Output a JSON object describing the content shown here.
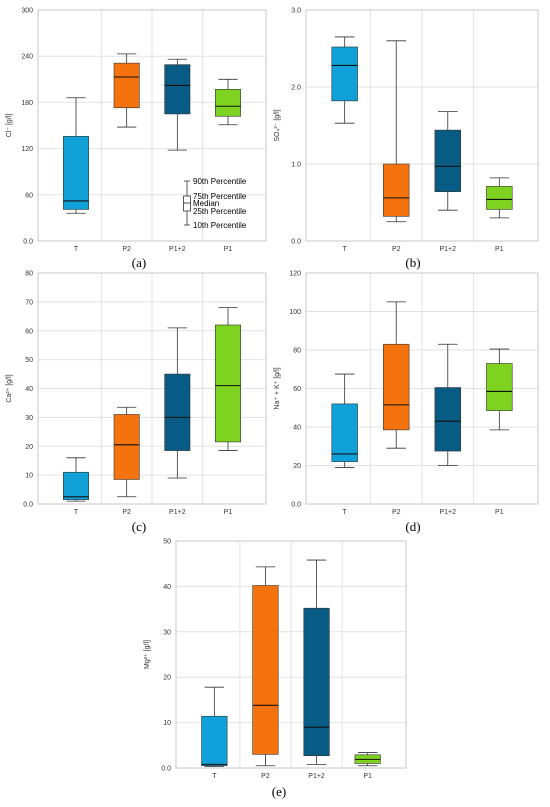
{
  "chart_data": [
    {
      "type": "box",
      "panel_label": "(a)",
      "title": "",
      "xlabel": "",
      "ylabel": "Cl⁻ [g/l]",
      "ylim": [
        0,
        300
      ],
      "yticks": [
        0,
        60,
        120,
        180,
        240,
        300
      ],
      "ytick_labels": [
        "0.0",
        "60",
        "120",
        "180",
        "240",
        "300"
      ],
      "grid": true,
      "categories": [
        "T",
        "P2",
        "P1+2",
        "P1"
      ],
      "colors": [
        "#0fa1d8",
        "#f5730f",
        "#085b84",
        "#7ed320"
      ],
      "boxes": [
        {
          "p10": 36,
          "q1": 41,
          "median": 52,
          "q3": 136,
          "p90": 186
        },
        {
          "p10": 148,
          "q1": 173,
          "median": 213,
          "q3": 231,
          "p90": 243
        },
        {
          "p10": 118,
          "q1": 165,
          "median": 202,
          "q3": 229,
          "p90": 236
        },
        {
          "p10": 151,
          "q1": 162,
          "median": 175,
          "q3": 197,
          "p90": 210
        }
      ],
      "legend": {
        "position": "bottom-right",
        "items": [
          "90th Percentile",
          "75th Percentile",
          "Median",
          "25th Percentile",
          "10th Percentile"
        ]
      }
    },
    {
      "type": "box",
      "panel_label": "(b)",
      "title": "",
      "xlabel": "",
      "ylabel": "SO₄²⁻ [g/l]",
      "ylim": [
        0,
        3
      ],
      "yticks": [
        0,
        1,
        2,
        3
      ],
      "ytick_labels": [
        "0.0",
        "1.0",
        "2.0",
        "3.0"
      ],
      "grid": true,
      "categories": [
        "T",
        "P2",
        "P1+2",
        "P1"
      ],
      "colors": [
        "#0fa1d8",
        "#f5730f",
        "#085b84",
        "#7ed320"
      ],
      "boxes": [
        {
          "p10": 1.53,
          "q1": 1.82,
          "median": 2.28,
          "q3": 2.52,
          "p90": 2.65
        },
        {
          "p10": 0.25,
          "q1": 0.32,
          "median": 0.56,
          "q3": 1.0,
          "p90": 2.6
        },
        {
          "p10": 0.4,
          "q1": 0.64,
          "median": 0.97,
          "q3": 1.44,
          "p90": 1.68
        },
        {
          "p10": 0.3,
          "q1": 0.41,
          "median": 0.54,
          "q3": 0.71,
          "p90": 0.82
        }
      ]
    },
    {
      "type": "box",
      "panel_label": "(c)",
      "title": "",
      "xlabel": "",
      "ylabel": "Ca²⁺ [g/l]",
      "ylim": [
        0,
        80
      ],
      "yticks": [
        0,
        10,
        20,
        30,
        40,
        50,
        60,
        70,
        80
      ],
      "ytick_labels": [
        "0.0",
        "10",
        "20",
        "30",
        "40",
        "50",
        "60",
        "70",
        "80"
      ],
      "grid": true,
      "categories": [
        "T",
        "P2",
        "P1+2",
        "P1"
      ],
      "colors": [
        "#0fa1d8",
        "#f5730f",
        "#085b84",
        "#7ed320"
      ],
      "boxes": [
        {
          "p10": 1.0,
          "q1": 1.5,
          "median": 2.5,
          "q3": 11,
          "p90": 16
        },
        {
          "p10": 2.5,
          "q1": 8.5,
          "median": 20.5,
          "q3": 31,
          "p90": 33.5
        },
        {
          "p10": 9,
          "q1": 18.5,
          "median": 30,
          "q3": 45,
          "p90": 61
        },
        {
          "p10": 18.5,
          "q1": 21.5,
          "median": 41,
          "q3": 62,
          "p90": 68
        }
      ]
    },
    {
      "type": "box",
      "panel_label": "(d)",
      "title": "",
      "xlabel": "",
      "ylabel": "Na⁺ + K⁺ [g/l]",
      "ylim": [
        0,
        120
      ],
      "yticks": [
        0,
        20,
        40,
        60,
        80,
        100,
        120
      ],
      "ytick_labels": [
        "0.0",
        "20",
        "40",
        "60",
        "80",
        "100",
        "120"
      ],
      "grid": true,
      "categories": [
        "T",
        "P2",
        "P1+2",
        "P1"
      ],
      "colors": [
        "#0fa1d8",
        "#f5730f",
        "#085b84",
        "#7ed320"
      ],
      "boxes": [
        {
          "p10": 19,
          "q1": 22,
          "median": 26,
          "q3": 52,
          "p90": 67.5
        },
        {
          "p10": 29,
          "q1": 38.5,
          "median": 51.5,
          "q3": 83,
          "p90": 105
        },
        {
          "p10": 20,
          "q1": 27.5,
          "median": 43,
          "q3": 60.5,
          "p90": 83
        },
        {
          "p10": 38.5,
          "q1": 48.5,
          "median": 58.5,
          "q3": 73,
          "p90": 80.5
        }
      ]
    },
    {
      "type": "box",
      "panel_label": "(e)",
      "title": "",
      "xlabel": "",
      "ylabel": "Mg²⁺ [g/l]",
      "ylim": [
        0,
        50
      ],
      "yticks": [
        0,
        10,
        20,
        30,
        40,
        50
      ],
      "ytick_labels": [
        "0.0",
        "10",
        "20",
        "30",
        "40",
        "50"
      ],
      "grid": true,
      "categories": [
        "T",
        "P2",
        "P1+2",
        "P1"
      ],
      "colors": [
        "#0fa1d8",
        "#f5730f",
        "#085b84",
        "#7ed320"
      ],
      "boxes": [
        {
          "p10": 0.3,
          "q1": 0.5,
          "median": 0.8,
          "q3": 11.4,
          "p90": 17.8
        },
        {
          "p10": 0.5,
          "q1": 3.0,
          "median": 13.8,
          "q3": 40.2,
          "p90": 44.3
        },
        {
          "p10": 0.8,
          "q1": 2.7,
          "median": 9.0,
          "q3": 35.2,
          "p90": 45.8
        },
        {
          "p10": 0.5,
          "q1": 1.0,
          "median": 1.9,
          "q3": 2.9,
          "p90": 3.4
        }
      ]
    }
  ]
}
